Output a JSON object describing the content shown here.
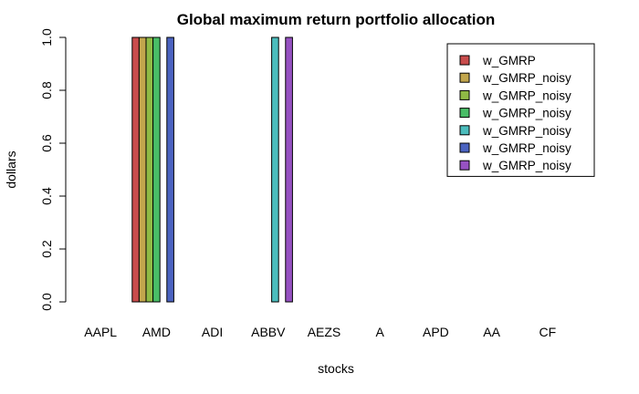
{
  "chart_data": {
    "type": "bar",
    "title": "Global maximum return portfolio allocation",
    "xlabel": "stocks",
    "ylabel": "dollars",
    "ylim": [
      0,
      1
    ],
    "yticks": [
      "0.0",
      "0.2",
      "0.4",
      "0.6",
      "0.8",
      "1.0"
    ],
    "categories": [
      "AAPL",
      "AMD",
      "ADI",
      "ABBV",
      "AEZS",
      "A",
      "APD",
      "AA",
      "CF"
    ],
    "legend_position": "top-right",
    "grid": false,
    "series": [
      {
        "name": "w_GMRP",
        "color": "#c94c4c",
        "values": [
          0,
          1,
          0,
          0,
          0,
          0,
          0,
          0,
          0
        ]
      },
      {
        "name": "w_GMRP_noisy",
        "color": "#c2a64d",
        "values": [
          0,
          1,
          0,
          0,
          0,
          0,
          0,
          0,
          0
        ]
      },
      {
        "name": "w_GMRP_noisy",
        "color": "#8fba45",
        "values": [
          0,
          1,
          0,
          0,
          0,
          0,
          0,
          0,
          0
        ]
      },
      {
        "name": "w_GMRP_noisy",
        "color": "#49bd67",
        "values": [
          0,
          1,
          0,
          0,
          0,
          0,
          0,
          0,
          0
        ]
      },
      {
        "name": "w_GMRP_noisy",
        "color": "#4cbdbd",
        "values": [
          0,
          0,
          0,
          1,
          0,
          0,
          0,
          0,
          0
        ]
      },
      {
        "name": "w_GMRP_noisy",
        "color": "#4b63c0",
        "values": [
          0,
          1,
          0,
          0,
          0,
          0,
          0,
          0,
          0
        ]
      },
      {
        "name": "w_GMRP_noisy",
        "color": "#9652c2",
        "values": [
          0,
          0,
          0,
          1,
          0,
          0,
          0,
          0,
          0
        ]
      }
    ]
  }
}
